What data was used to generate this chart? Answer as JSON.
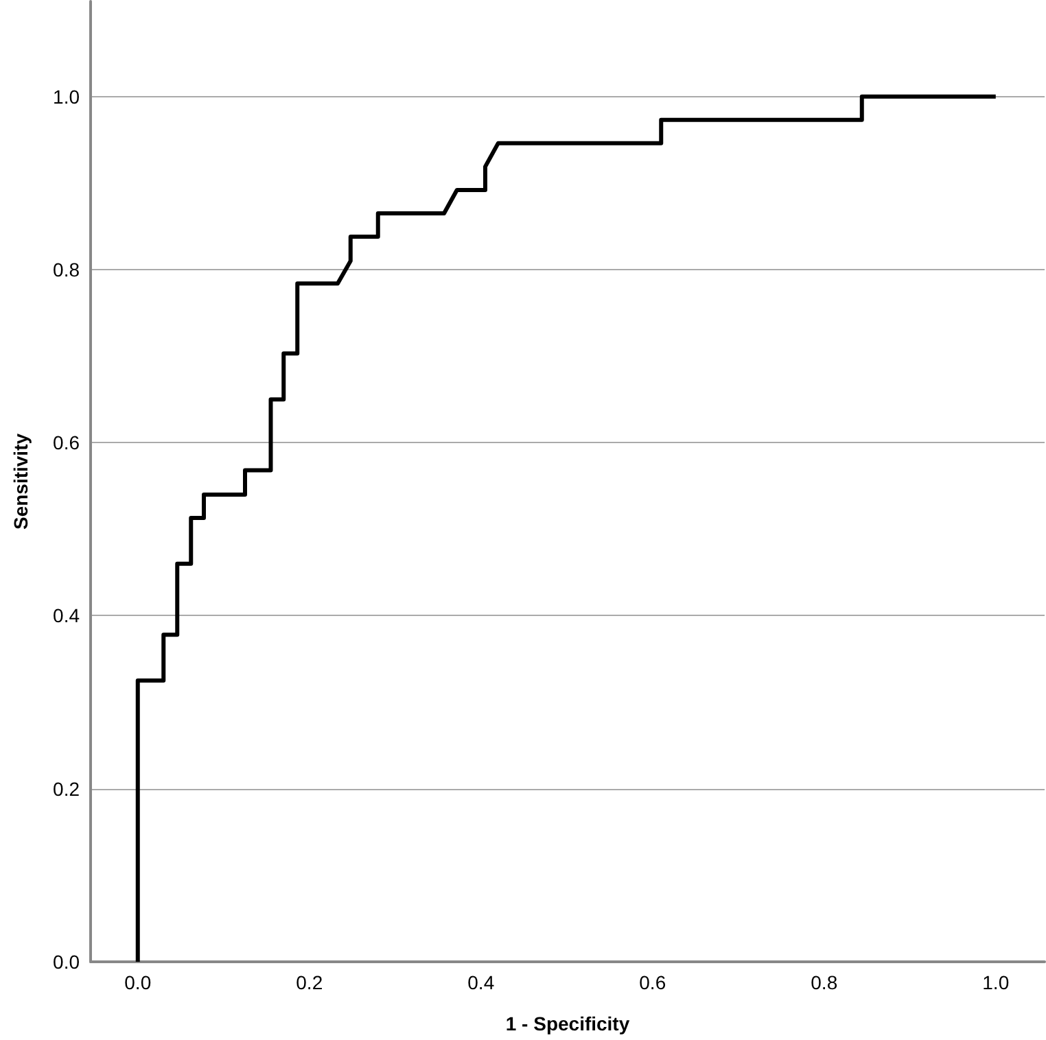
{
  "chart_data": {
    "type": "line",
    "xlabel": "1 - Specificity",
    "ylabel": "Sensitivity",
    "x": [
      0,
      0,
      0.03,
      0.03,
      0.046,
      0.046,
      0.062,
      0.062,
      0.077,
      0.077,
      0.125,
      0.125,
      0.155,
      0.155,
      0.17,
      0.17,
      0.186,
      0.186,
      0.233,
      0.248,
      0.248,
      0.28,
      0.28,
      0.357,
      0.372,
      0.405,
      0.405,
      0.42,
      0.61,
      0.61,
      0.844,
      0.844,
      1.0
    ],
    "series": [
      {
        "color": "#000000",
        "values": [
          0,
          0.325,
          0.325,
          0.378,
          0.378,
          0.46,
          0.46,
          0.513,
          0.513,
          0.54,
          0.54,
          0.568,
          0.568,
          0.65,
          0.65,
          0.703,
          0.703,
          0.784,
          0.784,
          0.81,
          0.838,
          0.838,
          0.865,
          0.865,
          0.892,
          0.892,
          0.919,
          0.946,
          0.946,
          0.973,
          0.973,
          1.0,
          1.0
        ]
      }
    ],
    "xlim": [
      -0.055,
      1.057
    ],
    "ylim": [
      0,
      1.11
    ],
    "xticks": [
      {
        "value": 0,
        "label": "0.0"
      },
      {
        "value": 0.2,
        "label": "0.2"
      },
      {
        "value": 0.4,
        "label": "0.4"
      },
      {
        "value": 0.6,
        "label": "0.6"
      },
      {
        "value": 0.8,
        "label": "0.8"
      },
      {
        "value": 1,
        "label": "1.0"
      }
    ],
    "yticks": [
      {
        "value": 0,
        "label": "0.0"
      },
      {
        "value": 0.2,
        "label": "0.2"
      },
      {
        "value": 0.4,
        "label": "0.4"
      },
      {
        "value": 0.6,
        "label": "0.6"
      },
      {
        "value": 0.8,
        "label": "0.8"
      },
      {
        "value": 1,
        "label": "1.0"
      }
    ],
    "grid": "y",
    "marker": "none",
    "line_style": "solid"
  }
}
